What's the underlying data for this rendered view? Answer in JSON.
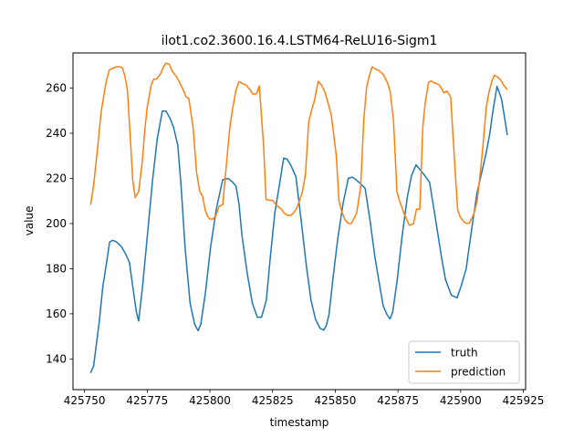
{
  "chart_data": {
    "type": "line",
    "title": "ilot1.co2.3600.16.4.LSTM64-ReLU16-Sigm1",
    "xlabel": "timestamp",
    "ylabel": "value",
    "xlim": [
      425745.4,
      425925.9
    ],
    "ylim": [
      126.4,
      275.6
    ],
    "xticks": [
      425750,
      425775,
      425800,
      425825,
      425850,
      425875,
      425900,
      425925
    ],
    "yticks": [
      140,
      160,
      180,
      200,
      220,
      240,
      260
    ],
    "legend_position": "lower-right",
    "grid": false,
    "series": [
      {
        "name": "truth",
        "color": "#1f77b4",
        "x": [
          425752.4,
          425753.6,
          425755.8,
          425757.3,
          425758.9,
          425760,
          425761.2,
          425762.8,
          425764.7,
          425766.4,
          425767.9,
          425769.6,
          425770.7,
          425771.6,
          425773.2,
          425775.7,
          425777.2,
          425779,
          425781,
          425782.5,
          425784.2,
          425785.5,
          425787.2,
          425788.5,
          425790.1,
          425792.1,
          425793.9,
          425795.3,
          425796.4,
          425798.2,
          425800.3,
          425802.6,
          425805.1,
          425807.2,
          425808.9,
          425810.4,
          425811.6,
          425812.8,
          425814.9,
          425816.9,
          425818.9,
          425820.6,
          425822.5,
          425824.1,
          425825.9,
          425827.7,
          425829.4,
          425830.8,
          425832.2,
          425834.3,
          425836.5,
          425838.5,
          425840.3,
          425842.1,
          425843.9,
          425845.4,
          425846.4,
          425847.5,
          425849.2,
          425851,
          425853.2,
          425855.2,
          425856.7,
          425858.2,
          425860,
          425861.9,
          425863.9,
          425865.8,
          425867.6,
          425869.1,
          425870.7,
          425871.8,
          425872.9,
          425874.7,
          425876.6,
          425878.7,
          425880.4,
          425882.2,
          425883.8,
          425885.6,
          425887.6,
          425890,
          425892.3,
          425893.9,
          425896.3,
          425898.6,
          425900.3,
          425902.2,
          425904.5,
          425906.5,
          425908.5,
          425910.2,
          425911.6,
          425912.9,
          425914.5,
          425916.3,
          425917.8,
          425918.6
        ],
        "values": [
          133.8,
          136.8,
          155.8,
          172.1,
          183.5,
          191.8,
          192.6,
          191.8,
          189.8,
          186.5,
          182.8,
          169.1,
          160.7,
          156.8,
          172.8,
          202.2,
          220,
          237.5,
          249.8,
          249.8,
          246.4,
          242.6,
          234.7,
          216.7,
          189.3,
          164.7,
          155.4,
          152.5,
          155.5,
          169.2,
          189.8,
          206.7,
          219.4,
          220,
          218.5,
          216.6,
          208.6,
          194.6,
          177.8,
          164.8,
          158.5,
          158.5,
          166,
          185.2,
          204.8,
          216.9,
          229,
          228.5,
          226,
          220.8,
          200.4,
          181,
          166.1,
          157.6,
          153.6,
          152.8,
          154.7,
          159.7,
          176.8,
          193.4,
          209.5,
          220,
          220.6,
          219.5,
          217.7,
          215.6,
          201,
          185.2,
          173.2,
          163.5,
          159.5,
          157.7,
          160.8,
          175,
          194,
          211.5,
          221.3,
          226,
          223.9,
          221.4,
          218.3,
          201.8,
          185.5,
          175.4,
          168.2,
          167.1,
          172.7,
          180,
          198.3,
          213.5,
          223.1,
          231.4,
          239.7,
          250.1,
          260.8,
          255.2,
          245,
          239.2
        ]
      },
      {
        "name": "prediction",
        "color": "#ff7f0e",
        "x": [
          425752.4,
          425753.6,
          425755.2,
          425756.6,
          425758.6,
          425759.9,
          425760.9,
          425762.8,
          425764,
          425765.1,
          425766.1,
          425767.1,
          425768.3,
          425769.2,
          425770.2,
          425771.6,
          425773,
          425774.1,
          425775,
          425776.6,
          425777.6,
          425778.6,
          425780.3,
          425781.4,
          425782.3,
          425783.7,
          425785,
          425786.8,
          425788.7,
          425789.7,
          425790.5,
          425791.6,
          425793.3,
          425794.7,
          425795.9,
          425797.1,
          425798.1,
          425799,
          425799.9,
          425801.3,
          425802.5,
          425803.6,
          425805.1,
          425806.5,
          425807.9,
          425809.1,
          425810.4,
          425811.6,
          425812.3,
          425813.5,
          425814.5,
          425816.1,
          425817.2,
          425818.6,
          425819.7,
          425821.4,
          425822.4,
          425823.8,
          425825,
          425826.1,
          425827.2,
          425828.6,
          425829.5,
          425831,
          425832.3,
          425833.3,
          425834.5,
          425835.7,
          425836.9,
          425838.1,
          425839.4,
          425840.6,
          425841.6,
          425843.2,
          425844.5,
          425845.9,
          425847.2,
          425848.4,
          425850.4,
          425851.5,
          425852.5,
          425853.8,
          425855.2,
          425856.4,
          425857.6,
          425858.5,
          425860.1,
          425861.4,
          425862.5,
          425863.6,
          425864.7,
          425865.9,
          425867.3,
          425869.1,
          425870.8,
          425871.9,
          425873.2,
          425874.6,
          425875.6,
          425876.6,
          425877.4,
          425878.5,
          425879.5,
          425881.2,
          425882.4,
          425883.7,
          425884.9,
          425885.8,
          425887.2,
          425888.2,
          425889.5,
          425890.8,
          425891.9,
          425893.3,
          425894.5,
          425896,
          425897.6,
          425898.8,
          425899.8,
          425901.2,
          425902.5,
          425903.5,
          425905.2,
          425906.6,
          425908.1,
          425909.2,
          425910.2,
          425911.3,
          425912.4,
          425913.4,
          425914.6,
          425915.9,
          425917.3,
          425918.7
        ],
        "values": [
          208.3,
          216.6,
          233.4,
          249.3,
          262.7,
          268.1,
          268.6,
          269.5,
          269.5,
          268.9,
          265.3,
          259.2,
          237.2,
          219.5,
          211.5,
          214.3,
          227.2,
          242.2,
          251.6,
          261.5,
          264,
          263.9,
          266.3,
          269.2,
          271,
          270.7,
          267.5,
          264.8,
          260.8,
          258.3,
          256.1,
          255.4,
          242.5,
          222.6,
          214.4,
          212,
          206,
          203.4,
          202,
          202,
          203.8,
          207.6,
          208.4,
          225.2,
          242.2,
          251.2,
          259.1,
          262.9,
          262.4,
          261.8,
          261.3,
          259.1,
          257.3,
          257.5,
          261,
          234.7,
          210.6,
          210.3,
          210.3,
          208.7,
          207.5,
          206.3,
          204.7,
          203.6,
          203.6,
          204.7,
          206.5,
          210,
          214.1,
          221.8,
          245,
          250.4,
          254.1,
          263,
          261.3,
          258.1,
          253.1,
          248.1,
          230.1,
          209.9,
          205.6,
          201.8,
          200.1,
          200,
          202.6,
          204.6,
          215.8,
          246.5,
          260.4,
          265.6,
          269.4,
          268.5,
          267.9,
          266.1,
          262.4,
          258.4,
          245.9,
          214.1,
          210.1,
          207.1,
          204.4,
          201.7,
          199.2,
          199.9,
          206.4,
          206.3,
          242.7,
          252.9,
          262.6,
          263.2,
          262.3,
          261.9,
          260.8,
          257.9,
          258.7,
          256.2,
          227.1,
          206.1,
          203,
          200.8,
          200,
          200.3,
          204,
          210.2,
          225.2,
          238.2,
          251.4,
          258.3,
          262.9,
          265.7,
          265,
          263.7,
          261.1,
          259.2
        ]
      }
    ]
  }
}
